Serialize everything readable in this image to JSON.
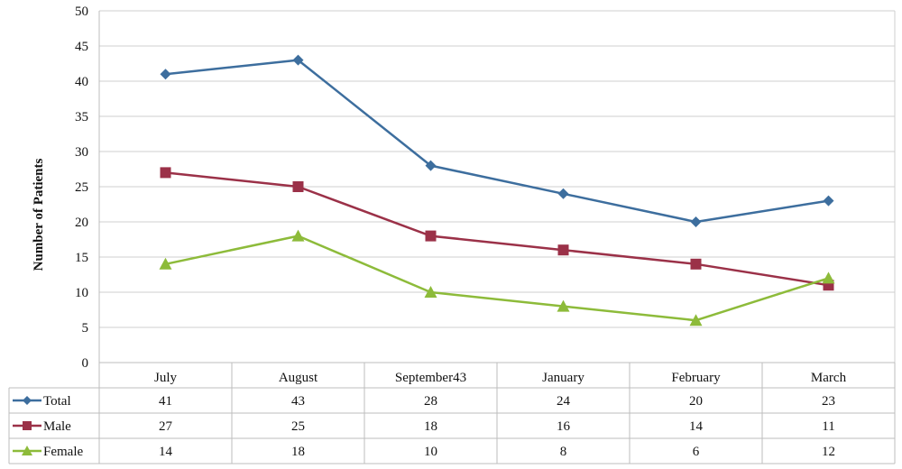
{
  "chart_data": {
    "type": "line",
    "title": "",
    "xlabel": "",
    "ylabel": "Number of Patients",
    "ylim": [
      0,
      50
    ],
    "ytick_step": 5,
    "grid": true,
    "legend": "data-table-below",
    "categories": [
      "July",
      "August",
      "September43",
      "January",
      "February",
      "March"
    ],
    "series": [
      {
        "name": "Total",
        "values": [
          41,
          43,
          28,
          24,
          20,
          23
        ],
        "color": "#3d6e9e",
        "marker": "diamond"
      },
      {
        "name": "Male",
        "values": [
          27,
          25,
          18,
          16,
          14,
          11
        ],
        "color": "#9b3148",
        "marker": "square"
      },
      {
        "name": "Female",
        "values": [
          14,
          18,
          10,
          8,
          6,
          12
        ],
        "color": "#8dbb3a",
        "marker": "triangle"
      }
    ]
  }
}
